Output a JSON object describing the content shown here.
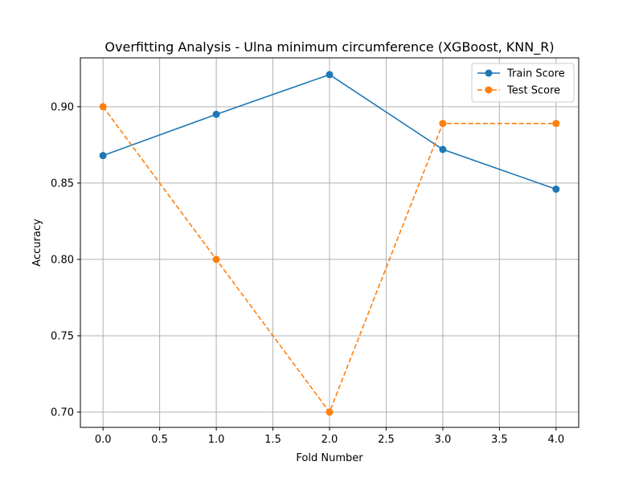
{
  "chart_data": {
    "type": "line",
    "title": "Overfitting Analysis - Ulna minimum circumference (XGBoost, KNN_R)",
    "xlabel": "Fold Number",
    "ylabel": "Accuracy",
    "xlim": [
      -0.2,
      4.2
    ],
    "ylim": [
      0.69,
      0.932
    ],
    "xticks": [
      0.0,
      0.5,
      1.0,
      1.5,
      2.0,
      2.5,
      3.0,
      3.5,
      4.0
    ],
    "xtick_labels": [
      "0.0",
      "0.5",
      "1.0",
      "1.5",
      "2.0",
      "2.5",
      "3.0",
      "3.5",
      "4.0"
    ],
    "yticks": [
      0.7,
      0.75,
      0.8,
      0.85,
      0.9
    ],
    "ytick_labels": [
      "0.70",
      "0.75",
      "0.80",
      "0.85",
      "0.90"
    ],
    "grid": true,
    "legend_position": "top-right",
    "x": [
      0,
      1,
      2,
      3,
      4
    ],
    "series": [
      {
        "name": "Train Score",
        "values": [
          0.868,
          0.895,
          0.921,
          0.872,
          0.846
        ],
        "color": "#1f77b4",
        "line_style": "solid",
        "marker": "circle"
      },
      {
        "name": "Test Score",
        "values": [
          0.9,
          0.8,
          0.7,
          0.889,
          0.889
        ],
        "color": "#ff7f0e",
        "line_style": "dashed",
        "marker": "circle"
      }
    ]
  }
}
